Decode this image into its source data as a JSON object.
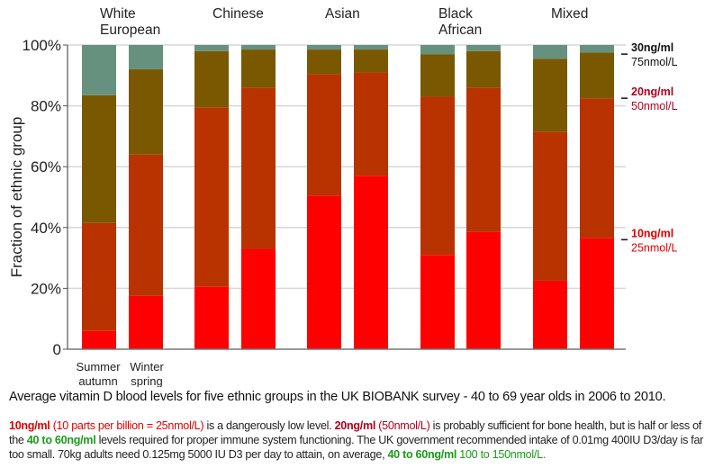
{
  "chart_data": {
    "type": "bar",
    "stacked": true,
    "title": "Average vitamin D blood levels for five ethnic groups in the UK BIOBANK survey - 40 to 69 year olds in 2006 to 2010.",
    "ylabel": "Fraction of ethnic group",
    "xlabel": "",
    "ylim": [
      0,
      100
    ],
    "yticks": [
      "0",
      "20%",
      "40%",
      "60%",
      "80%",
      "100%"
    ],
    "grid": true,
    "groups": [
      "White\nEuropean",
      "Chinese",
      "Asian",
      "Black\nAfrican",
      "Mixed"
    ],
    "season_labels": [
      "Summer\nautumn",
      "Winter\nspring"
    ],
    "bands": [
      {
        "name": "<10ng/ml",
        "color": "#ff0000"
      },
      {
        "name": "10-20ng/ml",
        "color": "#b83300"
      },
      {
        "name": "20-30ng/ml",
        "color": "#7a5800"
      },
      {
        "name": ">30ng/ml",
        "color": "#67917f"
      }
    ],
    "series": [
      {
        "group": "White European",
        "season": "Summer autumn",
        "values": [
          6,
          35.5,
          42,
          16.5
        ]
      },
      {
        "group": "White European",
        "season": "Winter spring",
        "values": [
          17.5,
          46.5,
          28,
          8
        ]
      },
      {
        "group": "Chinese",
        "season": "Summer autumn",
        "values": [
          20.5,
          59,
          18.5,
          2
        ]
      },
      {
        "group": "Chinese",
        "season": "Winter spring",
        "values": [
          33,
          53,
          12.5,
          1.5
        ]
      },
      {
        "group": "Asian",
        "season": "Summer autumn",
        "values": [
          50.5,
          40,
          8,
          1.5
        ]
      },
      {
        "group": "Asian",
        "season": "Winter spring",
        "values": [
          57,
          34,
          7.5,
          1.5
        ]
      },
      {
        "group": "Black African",
        "season": "Summer autumn",
        "values": [
          31,
          52,
          14,
          3
        ]
      },
      {
        "group": "Black African",
        "season": "Winter spring",
        "values": [
          38.5,
          47.5,
          12,
          2
        ]
      },
      {
        "group": "Mixed",
        "season": "Summer autumn",
        "values": [
          22.5,
          49,
          24,
          4.5
        ]
      },
      {
        "group": "Mixed",
        "season": "Winter spring",
        "values": [
          36.5,
          46,
          15,
          2.5
        ]
      }
    ],
    "thresholds": [
      {
        "value": 97,
        "ng": "30ng/ml",
        "nmol": "75nmol/L",
        "color": "#111111"
      },
      {
        "value": 82.5,
        "ng": "20ng/ml",
        "nmol": "50nmol/L",
        "color": "#b00020"
      },
      {
        "value": 36,
        "ng": "10ng/ml",
        "nmol": "25nmol/L",
        "color": "#e00000"
      }
    ]
  },
  "notes": {
    "l1a": "10ng/ml",
    "l1b": " (10 parts per billion = 25nmol/L)",
    "l1c": " is a dangerously low level.  ",
    "l1d": "20ng/ml",
    "l1e": " (50nmol/L)",
    "l1f": " is probably sufficient for bone health, but is half or less of the ",
    "l2a": "40 to 60ng/ml",
    "l2b": " levels required for proper immune system functioning.  The UK government recommended intake of 0.01mg 400IU D3/day is far too small.  70kg adults need 0.125mg 5000 IU D3 per day to attain, on average, ",
    "l3a": "40 to 60ng/ml",
    "l3b": " 100 to 150nmol/L."
  }
}
